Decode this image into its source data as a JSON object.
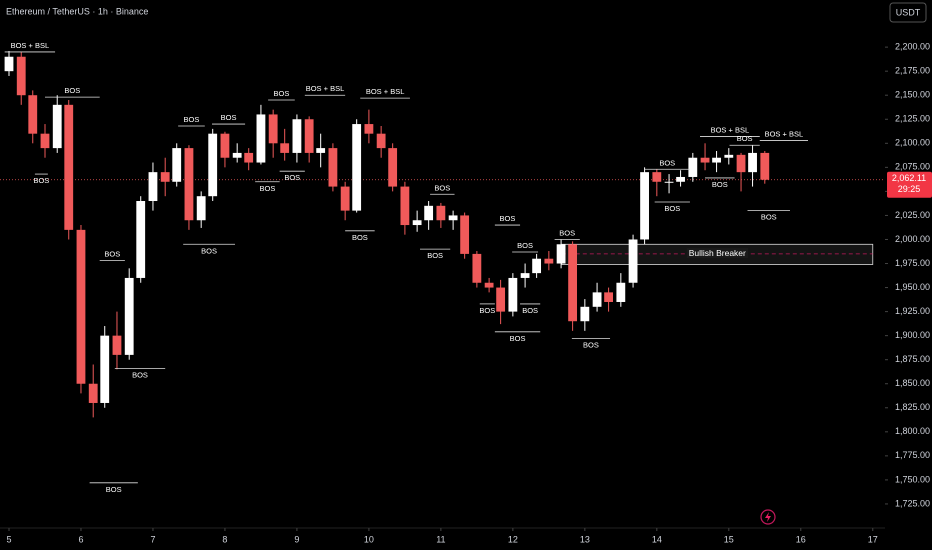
{
  "chart_data": {
    "type": "candlestick",
    "title": "Ethereum / TetherUS · 1h · Binance",
    "currency_button": "USDT",
    "up_color": "#ffffff",
    "down_color": "#f05a5a",
    "xlim": [
      4.875,
      17.17
    ],
    "ylim": [
      1700,
      2249
    ],
    "xticks": [
      5,
      6,
      7,
      8,
      9,
      10,
      11,
      12,
      13,
      14,
      15,
      16,
      17
    ],
    "yticks": [
      {
        "value": 1725,
        "label": "1,725.00"
      },
      {
        "value": 1750,
        "label": "1,750.00"
      },
      {
        "value": 1775,
        "label": "1,775.00"
      },
      {
        "value": 1800,
        "label": "1,800.00"
      },
      {
        "value": 1825,
        "label": "1,825.00"
      },
      {
        "value": 1850,
        "label": "1,850.00"
      },
      {
        "value": 1875,
        "label": "1,875.00"
      },
      {
        "value": 1900,
        "label": "1,900.00"
      },
      {
        "value": 1925,
        "label": "1,925.00"
      },
      {
        "value": 1950,
        "label": "1,950.00"
      },
      {
        "value": 1975,
        "label": "1,975.00"
      },
      {
        "value": 2000,
        "label": "2,000.00"
      },
      {
        "value": 2025,
        "label": "2,025.00"
      },
      {
        "value": 2050,
        "label": "2,050.00"
      },
      {
        "value": 2075,
        "label": "2,075.00"
      },
      {
        "value": 2100,
        "label": "2,100.00"
      },
      {
        "value": 2125,
        "label": "2,125.00"
      },
      {
        "value": 2150,
        "label": "2,150.00"
      },
      {
        "value": 2175,
        "label": "2,175.00"
      },
      {
        "value": 2200,
        "label": "2,200.00"
      }
    ],
    "x": [
      5,
      5.17,
      5.33,
      5.5,
      5.67,
      5.83,
      6,
      6.17,
      6.33,
      6.5,
      6.67,
      6.83,
      7,
      7.17,
      7.33,
      7.5,
      7.67,
      7.83,
      8,
      8.17,
      8.33,
      8.5,
      8.67,
      8.83,
      9,
      9.17,
      9.33,
      9.5,
      9.67,
      9.83,
      10,
      10.17,
      10.33,
      10.5,
      10.67,
      10.83,
      11,
      11.17,
      11.33,
      11.5,
      11.67,
      11.83,
      12,
      12.17,
      12.33,
      12.5,
      12.67,
      12.83,
      13,
      13.17,
      13.33,
      13.5,
      13.67,
      13.83,
      14,
      14.17,
      14.33,
      14.5,
      14.67,
      14.83,
      15,
      15.17,
      15.33,
      15.5
    ],
    "open": [
      2175,
      2190,
      2150,
      2110,
      2095,
      2140,
      2010,
      1850,
      1830,
      1900,
      1880,
      1960,
      2040,
      2070,
      2060,
      2095,
      2020,
      2045,
      2110,
      2085,
      2090,
      2080,
      2130,
      2100,
      2090,
      2125,
      2090,
      2095,
      2055,
      2030,
      2120,
      2110,
      2095,
      2055,
      2015,
      2020,
      2035,
      2020,
      2025,
      1985,
      1955,
      1950,
      1925,
      1960,
      1965,
      1980,
      1975,
      1995,
      1915,
      1930,
      1945,
      1935,
      1955,
      2000,
      2070,
      2060,
      2060,
      2065,
      2085,
      2080,
      2085,
      2088,
      2070,
      2090
    ],
    "high": [
      2196,
      2195,
      2155,
      2120,
      2150,
      2145,
      2015,
      1870,
      1910,
      1925,
      1970,
      2045,
      2080,
      2085,
      2100,
      2098,
      2050,
      2115,
      2112,
      2100,
      2095,
      2140,
      2135,
      2115,
      2130,
      2128,
      2110,
      2100,
      2060,
      2125,
      2135,
      2118,
      2100,
      2060,
      2030,
      2040,
      2038,
      2030,
      2028,
      1988,
      1960,
      1958,
      1965,
      1975,
      1985,
      1988,
      2000,
      1998,
      1938,
      1955,
      1950,
      1965,
      2005,
      2075,
      2073,
      2068,
      2072,
      2090,
      2100,
      2092,
      2095,
      2090,
      2098,
      2092
    ],
    "low": [
      2170,
      2140,
      2100,
      2085,
      2090,
      2000,
      1840,
      1815,
      1825,
      1865,
      1875,
      1955,
      2030,
      2045,
      2055,
      2010,
      2012,
      2040,
      2075,
      2080,
      2072,
      2078,
      2085,
      2082,
      2080,
      2080,
      2075,
      2050,
      2020,
      2028,
      2100,
      2085,
      2050,
      2005,
      2008,
      2010,
      2012,
      2010,
      1980,
      1950,
      1945,
      1912,
      1920,
      1950,
      1960,
      1968,
      1970,
      1905,
      1905,
      1925,
      1925,
      1930,
      1950,
      1995,
      2045,
      2048,
      2055,
      2060,
      2072,
      2070,
      2078,
      2050,
      2055,
      2058
    ],
    "close": [
      2190,
      2150,
      2110,
      2095,
      2140,
      2010,
      1850,
      1830,
      1900,
      1880,
      1960,
      2040,
      2070,
      2060,
      2095,
      2020,
      2045,
      2110,
      2085,
      2090,
      2080,
      2130,
      2100,
      2090,
      2125,
      2090,
      2095,
      2055,
      2030,
      2120,
      2110,
      2095,
      2055,
      2015,
      2020,
      2035,
      2020,
      2025,
      1985,
      1955,
      1950,
      1925,
      1960,
      1965,
      1980,
      1975,
      1995,
      1915,
      1930,
      1945,
      1935,
      1955,
      2000,
      2070,
      2060,
      2060,
      2065,
      2085,
      2080,
      2085,
      2088,
      2070,
      2090,
      2062.11
    ],
    "last_price": {
      "value": 2062.11,
      "label": "2,062.11"
    },
    "countdown": "29:25",
    "annotations": [
      {
        "label": "BOS + BSL",
        "price": 2195,
        "start": 4.94,
        "end": 5.64,
        "side": "above"
      },
      {
        "label": "BOS",
        "price": 2148,
        "start": 5.5,
        "end": 6.26,
        "side": "above"
      },
      {
        "label": "BOS",
        "price": 2068,
        "start": 5.36,
        "end": 5.54,
        "side": "below"
      },
      {
        "label": "BOS",
        "price": 1978,
        "start": 6.26,
        "end": 6.61,
        "side": "above"
      },
      {
        "label": "BOS",
        "price": 1866,
        "start": 6.47,
        "end": 7.17,
        "side": "below"
      },
      {
        "label": "BOS",
        "price": 1747,
        "start": 6.12,
        "end": 6.79,
        "side": "below"
      },
      {
        "label": "BOS",
        "price": 2118,
        "start": 7.35,
        "end": 7.72,
        "side": "above"
      },
      {
        "label": "BOS",
        "price": 1995,
        "start": 7.42,
        "end": 8.14,
        "side": "below"
      },
      {
        "label": "BOS",
        "price": 2120,
        "start": 7.82,
        "end": 8.28,
        "side": "above"
      },
      {
        "label": "BOS",
        "price": 2060,
        "start": 8.42,
        "end": 8.76,
        "side": "below"
      },
      {
        "label": "BOS",
        "price": 2145,
        "start": 8.6,
        "end": 8.97,
        "side": "above"
      },
      {
        "label": "BOS",
        "price": 2071,
        "start": 8.76,
        "end": 9.11,
        "side": "below"
      },
      {
        "label": "BOS + BSL",
        "price": 2150,
        "start": 9.11,
        "end": 9.67,
        "side": "above"
      },
      {
        "label": "BOS",
        "price": 2009,
        "start": 9.67,
        "end": 10.08,
        "side": "below"
      },
      {
        "label": "BOS + BSL",
        "price": 2147,
        "start": 9.88,
        "end": 10.57,
        "side": "above"
      },
      {
        "label": "BOS",
        "price": 2047,
        "start": 10.85,
        "end": 11.19,
        "side": "above"
      },
      {
        "label": "BOS",
        "price": 1990,
        "start": 10.71,
        "end": 11.13,
        "side": "below"
      },
      {
        "label": "BOS",
        "price": 2015,
        "start": 11.75,
        "end": 12.1,
        "side": "above"
      },
      {
        "label": "BOS",
        "price": 1987,
        "start": 11.99,
        "end": 12.35,
        "side": "above"
      },
      {
        "label": "BOS",
        "price": 1933,
        "start": 11.54,
        "end": 11.75,
        "side": "below"
      },
      {
        "label": "BOS",
        "price": 1904,
        "start": 11.75,
        "end": 12.38,
        "side": "below"
      },
      {
        "label": "BOS",
        "price": 1933,
        "start": 12.1,
        "end": 12.38,
        "side": "below"
      },
      {
        "label": "BOS",
        "price": 2000,
        "start": 12.58,
        "end": 12.93,
        "side": "above"
      },
      {
        "label": "BOS",
        "price": 1897,
        "start": 12.82,
        "end": 13.35,
        "side": "below"
      },
      {
        "label": "BOS",
        "price": 2073,
        "start": 13.83,
        "end": 14.46,
        "side": "above"
      },
      {
        "label": "BOS",
        "price": 2039,
        "start": 13.97,
        "end": 14.46,
        "side": "below"
      },
      {
        "label": "BOS + BSL",
        "price": 2107,
        "start": 14.6,
        "end": 15.43,
        "side": "above"
      },
      {
        "label": "BOS",
        "price": 2098,
        "start": 15.01,
        "end": 15.43,
        "side": "above"
      },
      {
        "label": "BOS",
        "price": 2064,
        "start": 14.67,
        "end": 15.08,
        "side": "below"
      },
      {
        "label": "BOS + BSL",
        "price": 2103,
        "start": 15.43,
        "end": 16.1,
        "side": "above"
      },
      {
        "label": "BOS",
        "price": 2030,
        "start": 15.26,
        "end": 15.85,
        "side": "below"
      }
    ],
    "zone": {
      "label": "Bullish Breaker",
      "top": 1995,
      "bottom": 1974,
      "mid": 1985,
      "start": 12.68,
      "end": 17.0
    }
  }
}
